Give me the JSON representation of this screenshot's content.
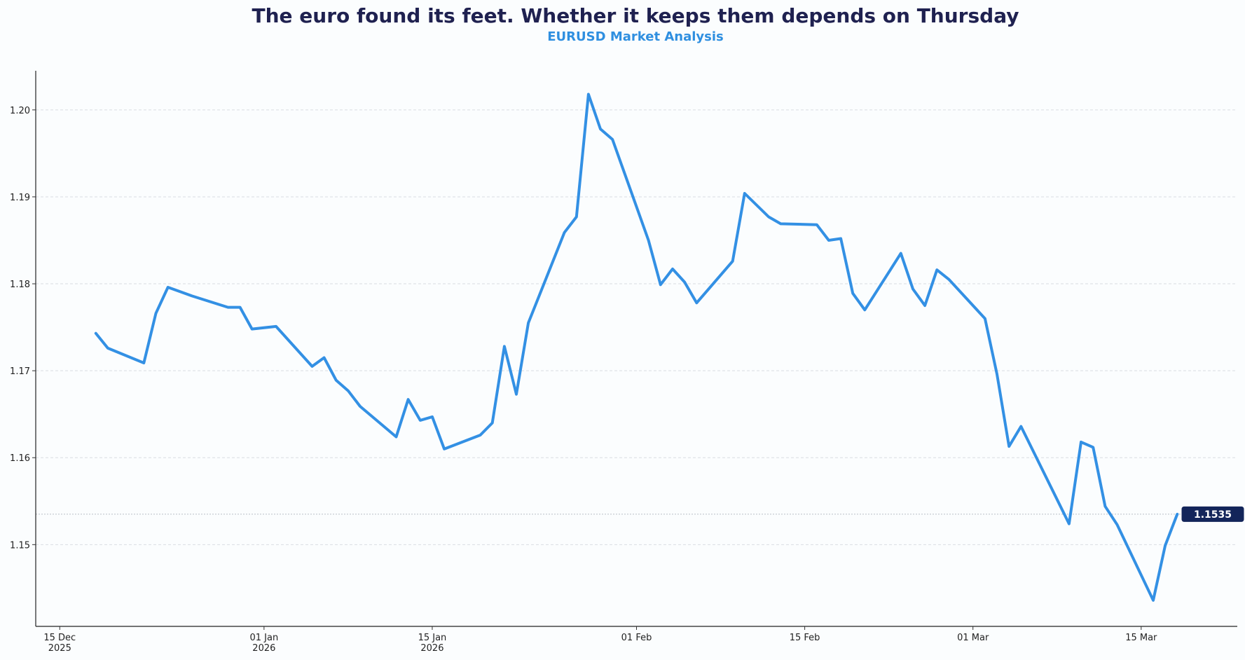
{
  "chart_data": {
    "type": "line",
    "title": "The euro found its feet. Whether it keeps them depends  on Thursday",
    "subtitle": "EURUSD Market Analysis",
    "xlabel": "",
    "ylabel": "",
    "x_range": [
      "2025-12-13",
      "2026-03-23"
    ],
    "ylim": [
      1.1406,
      1.2045
    ],
    "y_ticks": [
      1.15,
      1.16,
      1.17,
      1.18,
      1.19,
      1.2
    ],
    "y_tick_labels": [
      "1.15",
      "1.16",
      "1.17",
      "1.18",
      "1.19",
      "1.20"
    ],
    "x_ticks": [
      {
        "date": "2025-12-15",
        "label": [
          "15 Dec",
          "2025"
        ]
      },
      {
        "date": "2026-01-01",
        "label": [
          "01 Jan",
          "2026"
        ]
      },
      {
        "date": "2026-01-15",
        "label": [
          "15 Jan",
          "2026"
        ]
      },
      {
        "date": "2026-02-01",
        "label": [
          "01 Feb",
          ""
        ]
      },
      {
        "date": "2026-02-15",
        "label": [
          "15 Feb",
          ""
        ]
      },
      {
        "date": "2026-03-01",
        "label": [
          "01 Mar",
          ""
        ]
      },
      {
        "date": "2026-03-15",
        "label": [
          "15 Mar",
          ""
        ]
      }
    ],
    "grid": "horizontal dashed",
    "series": [
      {
        "name": "",
        "color": "#3390e4",
        "points": [
          [
            "2025-12-18",
            1.1743
          ],
          [
            "2025-12-19",
            1.1726
          ],
          [
            "2025-12-22",
            1.1709
          ],
          [
            "2025-12-23",
            1.1766
          ],
          [
            "2025-12-24",
            1.1796
          ],
          [
            "2025-12-26",
            1.1786
          ],
          [
            "2025-12-29",
            1.1773
          ],
          [
            "2025-12-30",
            1.1773
          ],
          [
            "2025-12-31",
            1.1748
          ],
          [
            "2026-01-02",
            1.1751
          ],
          [
            "2026-01-05",
            1.1705
          ],
          [
            "2026-01-06",
            1.1715
          ],
          [
            "2026-01-07",
            1.1689
          ],
          [
            "2026-01-08",
            1.1677
          ],
          [
            "2026-01-09",
            1.1659
          ],
          [
            "2026-01-12",
            1.1624
          ],
          [
            "2026-01-13",
            1.1667
          ],
          [
            "2026-01-14",
            1.1643
          ],
          [
            "2026-01-15",
            1.1647
          ],
          [
            "2026-01-16",
            1.161
          ],
          [
            "2026-01-19",
            1.1626
          ],
          [
            "2026-01-20",
            1.164
          ],
          [
            "2026-01-21",
            1.1728
          ],
          [
            "2026-01-22",
            1.1673
          ],
          [
            "2026-01-23",
            1.1755
          ],
          [
            "2026-01-26",
            1.1859
          ],
          [
            "2026-01-27",
            1.1877
          ],
          [
            "2026-01-28",
            1.2018
          ],
          [
            "2026-01-29",
            1.1978
          ],
          [
            "2026-01-30",
            1.1966
          ],
          [
            "2026-02-02",
            1.185
          ],
          [
            "2026-02-03",
            1.1799
          ],
          [
            "2026-02-04",
            1.1817
          ],
          [
            "2026-02-05",
            1.1802
          ],
          [
            "2026-02-06",
            1.1778
          ],
          [
            "2026-02-09",
            1.1826
          ],
          [
            "2026-02-10",
            1.1904
          ],
          [
            "2026-02-12",
            1.1877
          ],
          [
            "2026-02-13",
            1.1869
          ],
          [
            "2026-02-16",
            1.1868
          ],
          [
            "2026-02-17",
            1.185
          ],
          [
            "2026-02-18",
            1.1852
          ],
          [
            "2026-02-19",
            1.1789
          ],
          [
            "2026-02-20",
            1.177
          ],
          [
            "2026-02-23",
            1.1835
          ],
          [
            "2026-02-24",
            1.1794
          ],
          [
            "2026-02-25",
            1.1775
          ],
          [
            "2026-02-26",
            1.1816
          ],
          [
            "2026-02-27",
            1.1805
          ],
          [
            "2026-03-02",
            1.176
          ],
          [
            "2026-03-03",
            1.1696
          ],
          [
            "2026-03-04",
            1.1613
          ],
          [
            "2026-03-05",
            1.1636
          ],
          [
            "2026-03-09",
            1.1524
          ],
          [
            "2026-03-10",
            1.1618
          ],
          [
            "2026-03-11",
            1.1612
          ],
          [
            "2026-03-12",
            1.1544
          ],
          [
            "2026-03-13",
            1.1523
          ],
          [
            "2026-03-16",
            1.1436
          ],
          [
            "2026-03-17",
            1.1499
          ],
          [
            "2026-03-18",
            1.1535
          ]
        ]
      }
    ],
    "last_value": 1.1535,
    "last_value_label": "1.1535",
    "annotations": [
      {
        "type": "reference-line",
        "style": "dotted",
        "value": 1.1535
      },
      {
        "type": "value-badge",
        "text": "1.1535",
        "color": "#13255a"
      }
    ]
  }
}
